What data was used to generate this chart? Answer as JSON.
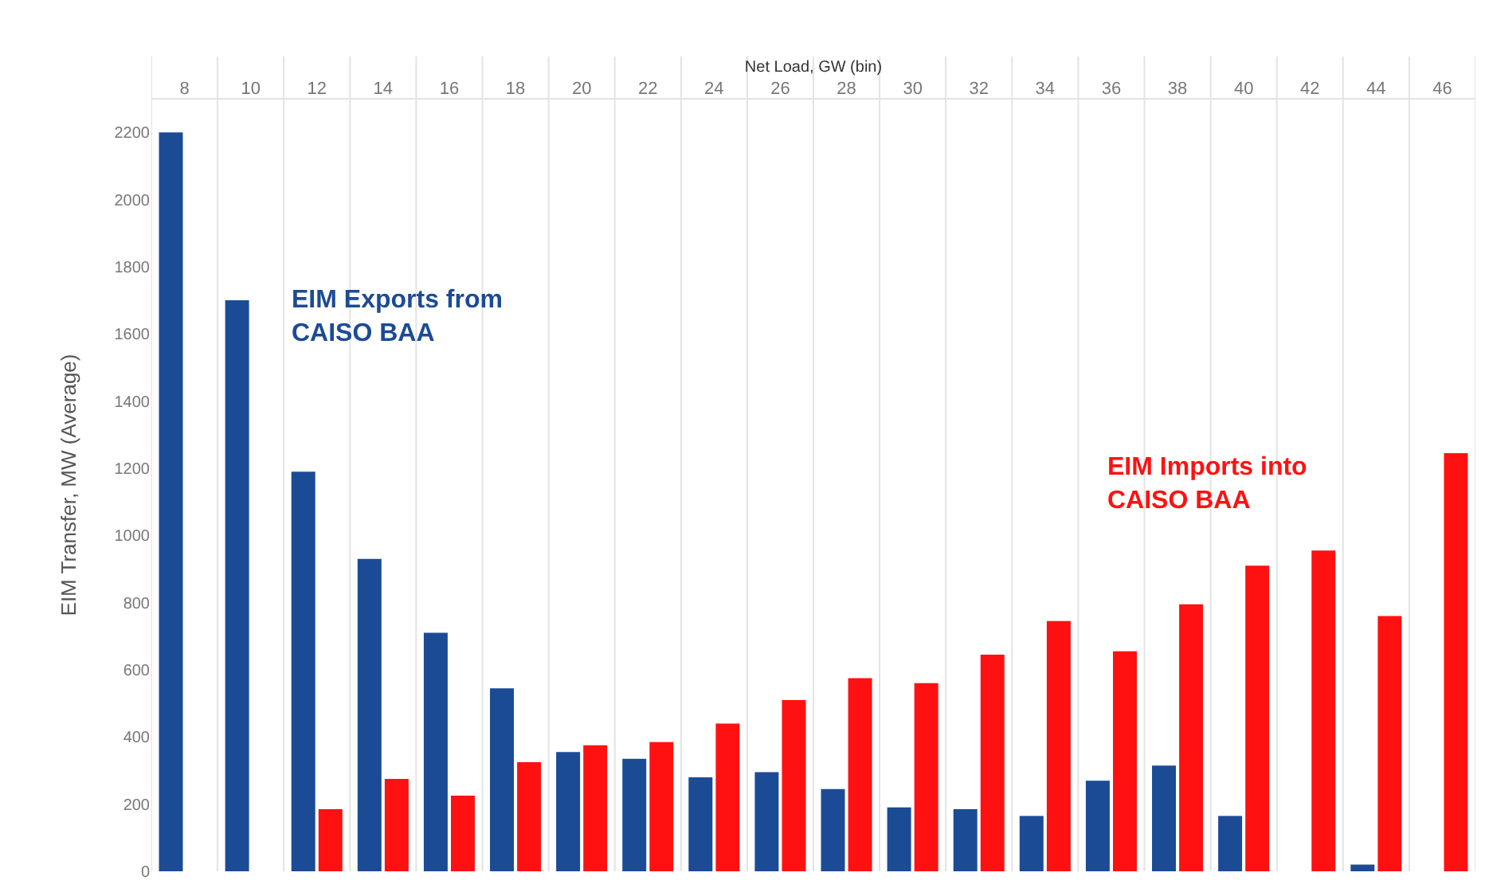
{
  "chart_data": {
    "type": "bar",
    "xlabel": "Net Load, GW (bin)",
    "ylabel": "EIM Transfer, MW (Average)",
    "categories": [
      "8",
      "10",
      "12",
      "14",
      "16",
      "18",
      "20",
      "22",
      "24",
      "26",
      "28",
      "30",
      "32",
      "34",
      "36",
      "38",
      "40",
      "42",
      "44",
      "46"
    ],
    "series": [
      {
        "name": "EIM Exports from CAISO BAA",
        "color": "#1c4b96",
        "values": [
          2200,
          1700,
          1190,
          930,
          710,
          545,
          355,
          335,
          280,
          295,
          245,
          190,
          185,
          165,
          270,
          315,
          165,
          null,
          20,
          null
        ]
      },
      {
        "name": "EIM Imports into CAISO BAA",
        "color": "#ff1111",
        "values": [
          null,
          null,
          185,
          275,
          225,
          325,
          375,
          385,
          440,
          510,
          575,
          560,
          645,
          745,
          655,
          795,
          910,
          955,
          760,
          1245
        ]
      }
    ],
    "ylim": [
      0,
      2300
    ],
    "yticks": [
      0,
      200,
      400,
      600,
      800,
      1000,
      1200,
      1400,
      1600,
      1800,
      2000,
      2200
    ],
    "grid": "x",
    "legend": false
  }
}
